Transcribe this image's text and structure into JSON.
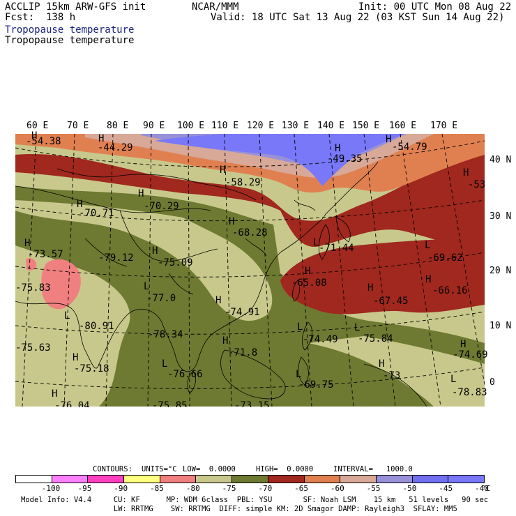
{
  "header": {
    "title_left": "ACCLIP 15km ARW-GFS init",
    "org": "NCAR/MMM",
    "init": "Init: 00 UTC Mon 08 Aug 22",
    "fcst": "Fcst:  138 h",
    "valid": "Valid: 18 UTC Sat 13 Aug 22 (03 KST Sun 14 Aug 22)",
    "field_line1": "Tropopause temperature",
    "field_line2": "Tropopause temperature"
  },
  "lon_labels": [
    "60 E",
    "70 E",
    "80 E",
    "90 E",
    "100 E",
    "110 E",
    "120 E",
    "130 E",
    "140 E",
    "150 E",
    "160 E",
    "170 E"
  ],
  "lat_labels": [
    "40 N",
    "30 N",
    "20 N",
    "10 N",
    "0"
  ],
  "extrema": [
    {
      "sym": "H",
      "val": "-54.38"
    },
    {
      "sym": "H",
      "val": "-44.29"
    },
    {
      "sym": "H",
      "val": "-49.35"
    },
    {
      "sym": "H",
      "val": "-54.79"
    },
    {
      "sym": "H",
      "val": "-58.29"
    },
    {
      "sym": "H",
      "val": "-53"
    },
    {
      "sym": "H",
      "val": "-70.29"
    },
    {
      "sym": "H",
      "val": "-70.71"
    },
    {
      "sym": "H",
      "val": "-68.28"
    },
    {
      "sym": "H",
      "val": "-73.57"
    },
    {
      "sym": "H",
      "val": "-79.12"
    },
    {
      "sym": "H",
      "val": "-75.09"
    },
    {
      "sym": "L",
      "val": "-71.44"
    },
    {
      "sym": "L",
      "val": "-69.62"
    },
    {
      "sym": "H",
      "val": "-65.08"
    },
    {
      "sym": "H",
      "val": "-67.45"
    },
    {
      "sym": "H",
      "val": "-66.16"
    },
    {
      "sym": "H",
      "val": "-75.83"
    },
    {
      "sym": "L",
      "val": "-77.0"
    },
    {
      "sym": "L",
      "val": "-80.91"
    },
    {
      "sym": "H",
      "val": "-74.91"
    },
    {
      "sym": "L",
      "val": "-74.49"
    },
    {
      "sym": "L",
      "val": "-75.84"
    },
    {
      "sym": "H",
      "val": "-78.34"
    },
    {
      "sym": "H",
      "val": "-71.8"
    },
    {
      "sym": "H",
      "val": "-74.69"
    },
    {
      "sym": "H",
      "val": "-75.63"
    },
    {
      "sym": "H",
      "val": "-75.18"
    },
    {
      "sym": "L",
      "val": "-76.66"
    },
    {
      "sym": "H",
      "val": "-73"
    },
    {
      "sym": "L",
      "val": "-69.75"
    },
    {
      "sym": "L",
      "val": "-78.83"
    },
    {
      "sym": "H",
      "val": "-76.04"
    },
    {
      "sym": "L",
      "val": "-75.85"
    },
    {
      "sym": "L",
      "val": "-73.15"
    }
  ],
  "contours_line": {
    "contours_label": "CONTOURS:",
    "units": "UNITS=°C",
    "low": "LOW=  0.0000",
    "high": "HIGH=  0.0000",
    "interval": "INTERVAL=   1000.0"
  },
  "colorbar": {
    "colors": [
      "#ffffff",
      "#ff80ff",
      "#ff40c0",
      "#ffff80",
      "#f08080",
      "#c8c88c",
      "#6e7a32",
      "#a0281e",
      "#e08050",
      "#d8a898",
      "#9890d8",
      "#7070f0",
      "#7878f8"
    ],
    "ticks": [
      "-100",
      "-95",
      "-90",
      "-85",
      "-80",
      "-75",
      "-70",
      "-65",
      "-60",
      "-55",
      "-50",
      "-45",
      "-40"
    ],
    "unit": "°C"
  },
  "model_info": {
    "line1": "Model Info: V4.4     CU: KF      MP: WDM 6class  PBL: YSU       SF: Noah LSM    15 km   51 levels   90 sec",
    "line2": "                     LW: RRTMG    SW: RRTMG  DIFF: simple KM: 2D Smagor DAMP: Rayleigh3  SFLAY: MM5"
  }
}
